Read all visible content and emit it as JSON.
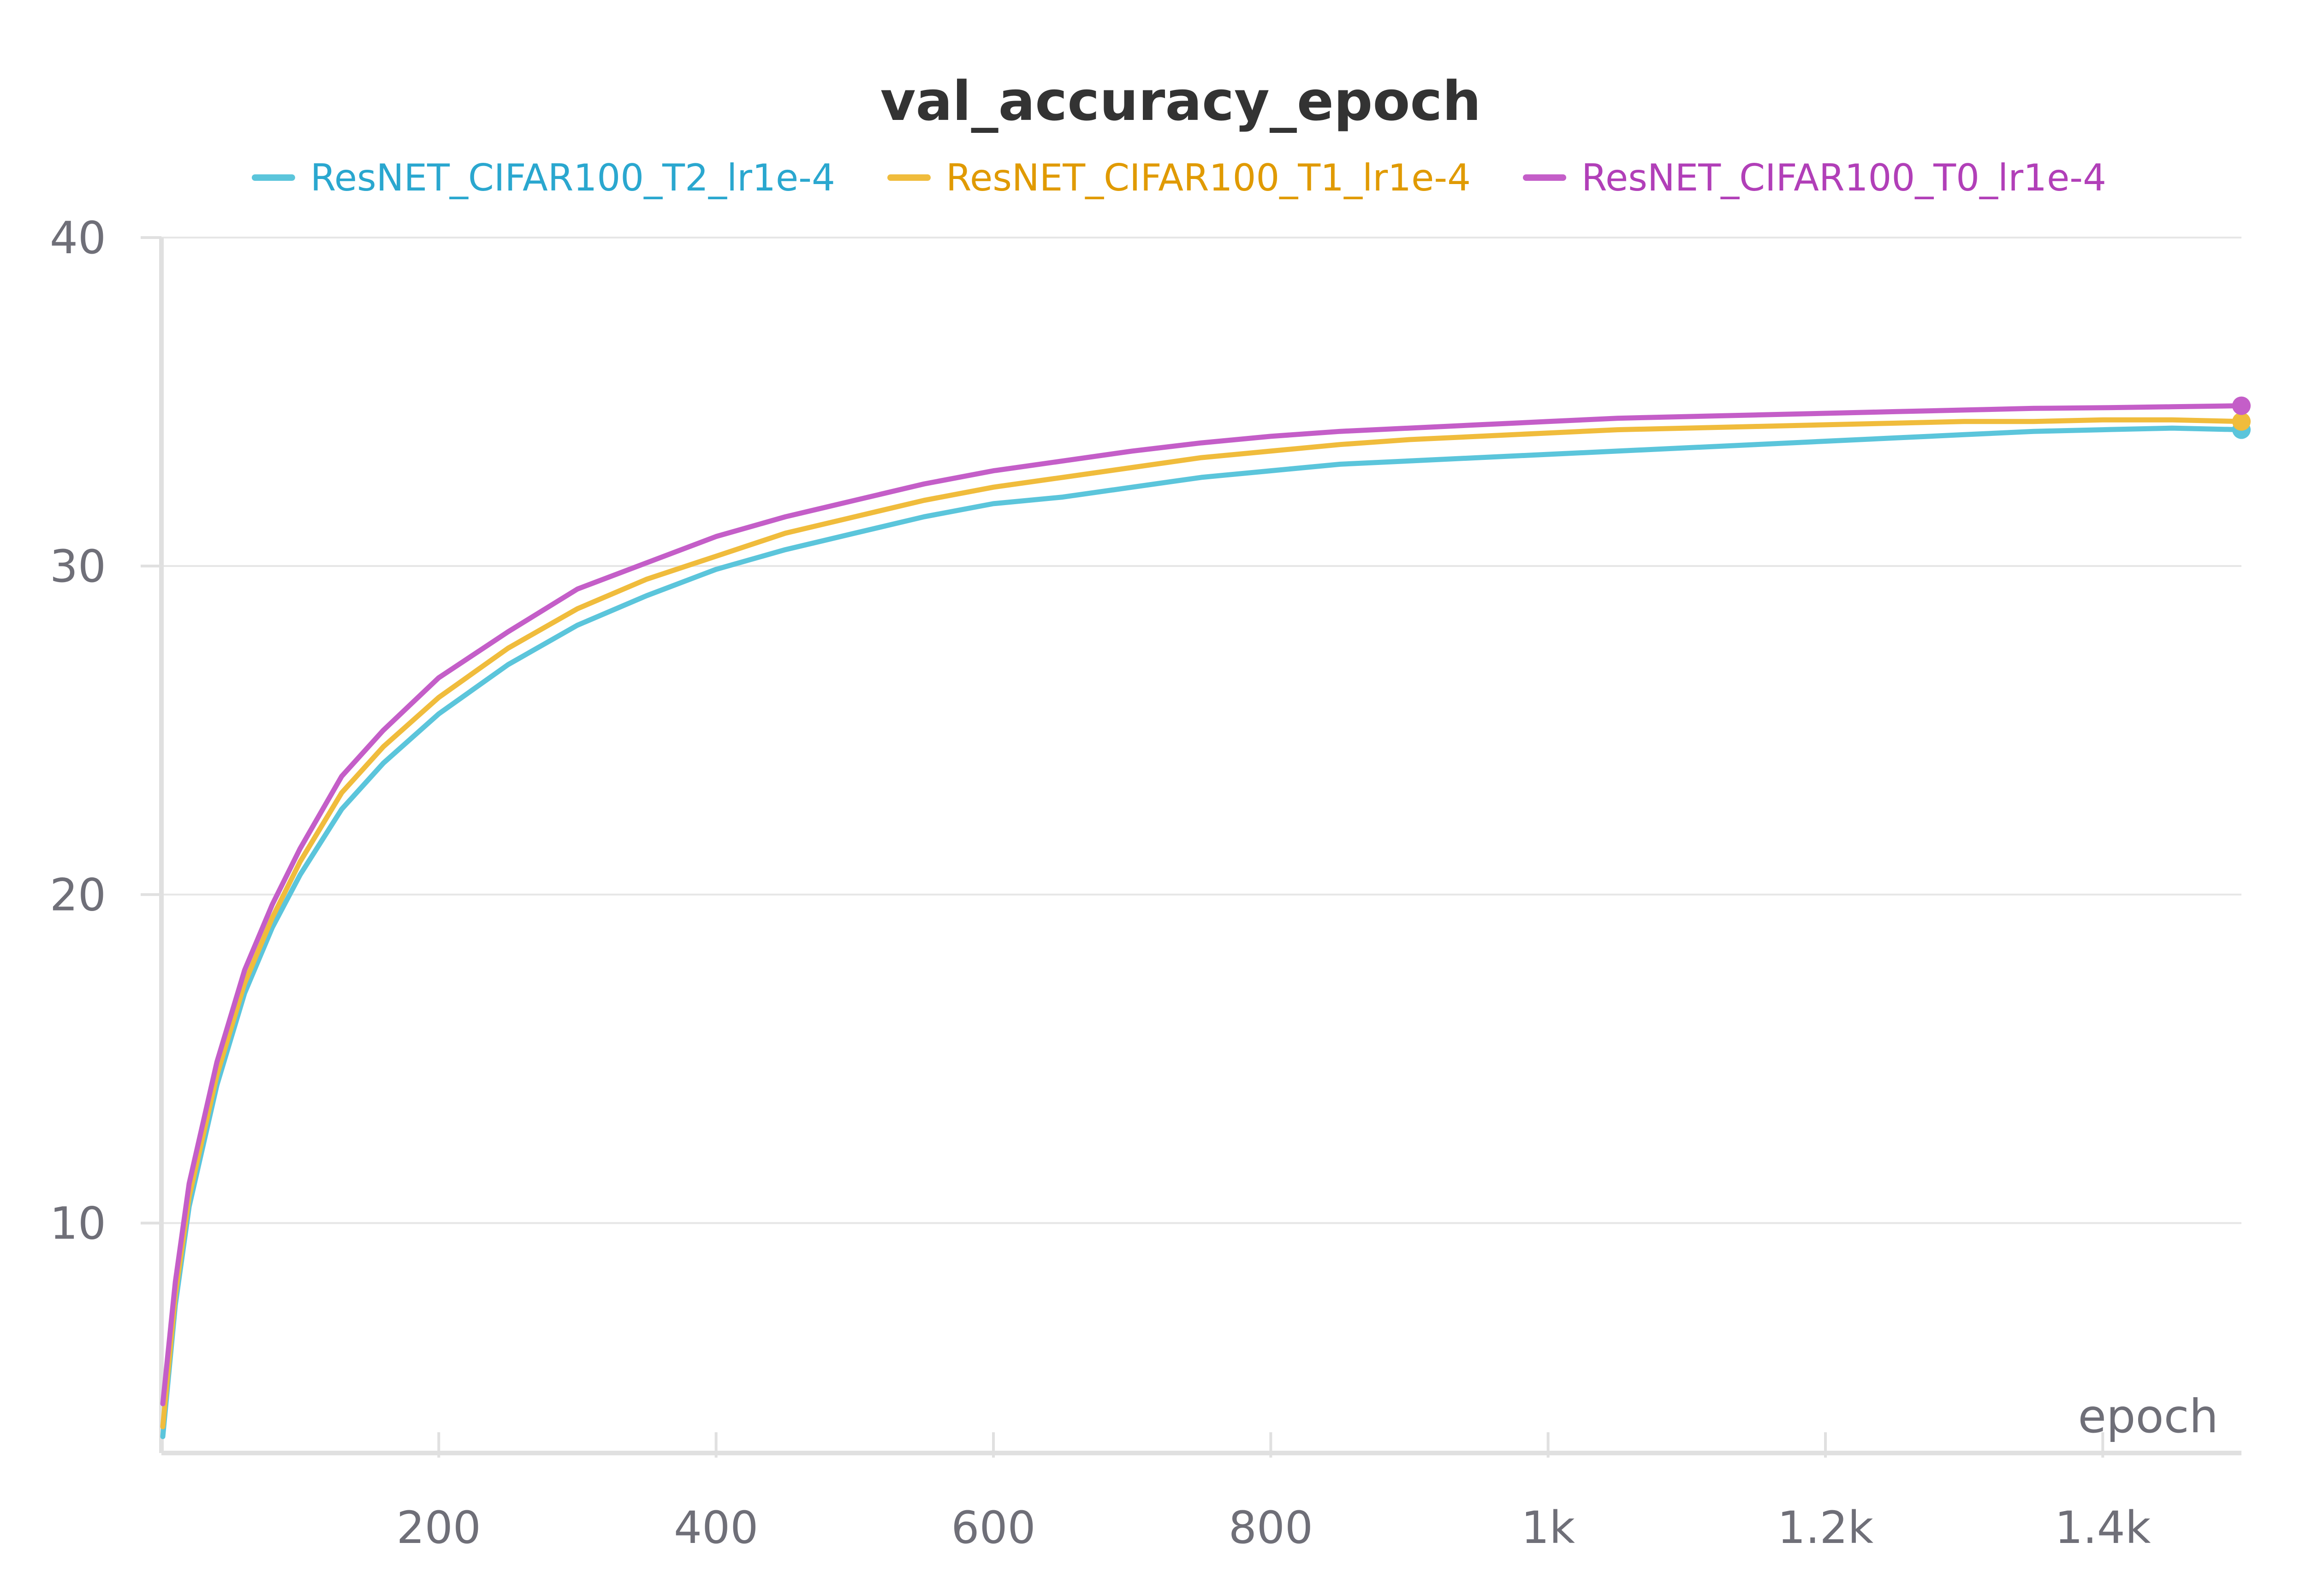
{
  "chart_data": {
    "type": "line",
    "title": "val_accuracy_epoch",
    "xlabel": "epoch",
    "ylabel": "",
    "xlim": [
      0,
      1500
    ],
    "ylim": [
      3,
      40
    ],
    "grid": true,
    "legend_placement": "top",
    "x_ticks": [
      200,
      400,
      600,
      800,
      1000,
      1200,
      1400
    ],
    "x_tick_labels": [
      "200",
      "400",
      "600",
      "800",
      "1k",
      "1.2k",
      "1.4k"
    ],
    "y_ticks": [
      10,
      20,
      30,
      40
    ],
    "y_tick_labels": [
      "10",
      "20",
      "30",
      "40"
    ],
    "x": [
      1,
      10,
      20,
      40,
      60,
      80,
      100,
      130,
      160,
      200,
      250,
      300,
      350,
      400,
      450,
      500,
      550,
      600,
      650,
      700,
      750,
      800,
      850,
      900,
      950,
      1000,
      1050,
      1100,
      1150,
      1200,
      1250,
      1300,
      1350,
      1400,
      1450,
      1500
    ],
    "series": [
      {
        "name": "ResNET_CIFAR100_T2_lr1e-4",
        "color": "#5bc5db",
        "legend_text_color": "#2aa7cf",
        "values": [
          3.5,
          7.5,
          10.5,
          14.2,
          17.0,
          19.0,
          20.6,
          22.6,
          24.0,
          25.5,
          27.0,
          28.2,
          29.1,
          29.9,
          30.5,
          31.0,
          31.5,
          31.9,
          32.1,
          32.4,
          32.7,
          32.9,
          33.1,
          33.2,
          33.3,
          33.4,
          33.5,
          33.6,
          33.7,
          33.8,
          33.9,
          34.0,
          34.1,
          34.15,
          34.2,
          34.15
        ]
      },
      {
        "name": "ResNET_CIFAR100_T1_lr1e-4",
        "color": "#f0bc3c",
        "legend_text_color": "#e09a00",
        "values": [
          3.8,
          7.8,
          10.8,
          14.5,
          17.3,
          19.3,
          21.0,
          23.1,
          24.5,
          26.0,
          27.5,
          28.7,
          29.6,
          30.3,
          31.0,
          31.5,
          32.0,
          32.4,
          32.7,
          33.0,
          33.3,
          33.5,
          33.7,
          33.85,
          33.95,
          34.05,
          34.15,
          34.2,
          34.25,
          34.3,
          34.35,
          34.4,
          34.4,
          34.45,
          34.45,
          34.4
        ]
      },
      {
        "name": "ResNET_CIFAR100_T0_lr1e-4",
        "color": "#c45ec8",
        "legend_text_color": "#b13fb8",
        "values": [
          4.5,
          8.2,
          11.2,
          14.9,
          17.7,
          19.7,
          21.4,
          23.6,
          25.0,
          26.6,
          28.0,
          29.3,
          30.1,
          30.9,
          31.5,
          32.0,
          32.5,
          32.9,
          33.2,
          33.5,
          33.75,
          33.95,
          34.1,
          34.2,
          34.3,
          34.4,
          34.5,
          34.55,
          34.6,
          34.65,
          34.7,
          34.75,
          34.8,
          34.82,
          34.85,
          34.88
        ]
      }
    ]
  }
}
